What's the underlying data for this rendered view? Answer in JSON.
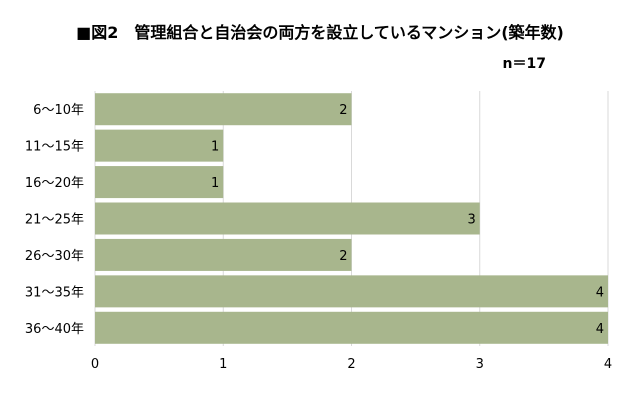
{
  "chart_data": {
    "type": "bar",
    "orientation": "horizontal",
    "title": "■図2　管理組合と自治会の両方を設立しているマンション(築年数)",
    "subtitle": "n＝17",
    "categories": [
      "6～10年",
      "11～15年",
      "16～20年",
      "21～25年",
      "26～30年",
      "31～35年",
      "36～40年"
    ],
    "values": [
      2,
      1,
      1,
      3,
      2,
      4,
      4
    ],
    "xlim": [
      0,
      4
    ],
    "xticks": [
      0,
      1,
      2,
      3,
      4
    ],
    "xlabel": "",
    "ylabel": "",
    "grid": "vertical",
    "legend": "none",
    "data_labels": true,
    "bar_color": "#a8b68d",
    "grid_color": "#d9d9d9"
  }
}
